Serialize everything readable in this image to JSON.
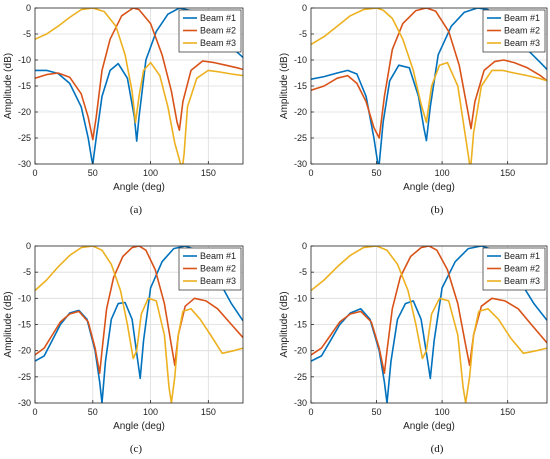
{
  "chart_data": [
    {
      "type": "line",
      "caption": "(a)",
      "xlabel": "Angle (deg)",
      "ylabel": "Amplitude (dB)",
      "xlim": [
        0,
        180
      ],
      "ylim": [
        -30,
        0
      ],
      "xticks": [
        0,
        50,
        100,
        150
      ],
      "yticks": [
        0,
        -5,
        -10,
        -15,
        -20,
        -25,
        -30
      ],
      "grid": true,
      "legend": "top-right",
      "series": [
        {
          "name": "Beam #1",
          "color": "#0072BD",
          "x": [
            0,
            10,
            20,
            30,
            40,
            46,
            49,
            50,
            53,
            58,
            65,
            72,
            80,
            86,
            88,
            90,
            96,
            105,
            115,
            125,
            135,
            143,
            150,
            160,
            170,
            180
          ],
          "y": [
            -12,
            -12,
            -12.6,
            -14.5,
            -19,
            -25,
            -29,
            -30,
            -25,
            -17,
            -12,
            -10.7,
            -13.5,
            -21,
            -25.6,
            -21,
            -10,
            -4.5,
            -1.2,
            0,
            -0.5,
            -1.8,
            -3.5,
            -5.5,
            -7.5,
            -9.5
          ]
        },
        {
          "name": "Beam #2",
          "color": "#D95319",
          "x": [
            0,
            10,
            20,
            30,
            40,
            46,
            50,
            53,
            58,
            65,
            75,
            85,
            90,
            100,
            110,
            118,
            123,
            125,
            128,
            135,
            145,
            155,
            165,
            175,
            180
          ],
          "y": [
            -13.5,
            -12.8,
            -12.5,
            -13.3,
            -16.5,
            -21,
            -25.3,
            -21,
            -12,
            -6,
            -1.5,
            0,
            -0.3,
            -3,
            -9,
            -16,
            -22,
            -23.5,
            -18,
            -12,
            -10.2,
            -10.5,
            -11,
            -11.5,
            -11.8
          ]
        },
        {
          "name": "Beam #3",
          "color": "#EDB120",
          "x": [
            0,
            10,
            20,
            30,
            40,
            50,
            60,
            70,
            78,
            84,
            87,
            90,
            94,
            100,
            108,
            115,
            121,
            126,
            128,
            129,
            132,
            140,
            150,
            160,
            170,
            180
          ],
          "y": [
            -6,
            -5,
            -3.5,
            -1.8,
            -0.3,
            0,
            -0.7,
            -3.5,
            -9,
            -16,
            -22,
            -17,
            -12,
            -10.5,
            -13,
            -19,
            -26,
            -30,
            -30,
            -28,
            -19,
            -13.5,
            -12,
            -12.3,
            -12.7,
            -13
          ]
        }
      ]
    },
    {
      "type": "line",
      "caption": "(b)",
      "xlabel": "Angle (deg)",
      "ylabel": "Amplitude (dB)",
      "xlim": [
        0,
        180
      ],
      "ylim": [
        -30,
        0
      ],
      "xticks": [
        0,
        50,
        100,
        150
      ],
      "yticks": [
        0,
        -5,
        -10,
        -15,
        -20,
        -25,
        -30
      ],
      "grid": true,
      "legend": "top-right",
      "series": [
        {
          "name": "Beam #1",
          "color": "#0072BD",
          "x": [
            0,
            10,
            20,
            28,
            35,
            42,
            48,
            51,
            52,
            55,
            60,
            67,
            75,
            82,
            86,
            88,
            91,
            97,
            107,
            117,
            127,
            135,
            145,
            155,
            165,
            175,
            180
          ],
          "y": [
            -13.7,
            -13.2,
            -12.5,
            -12,
            -12.7,
            -17,
            -25,
            -30,
            -30,
            -22,
            -14,
            -11,
            -11.5,
            -17,
            -23,
            -25.5,
            -19,
            -9,
            -3.5,
            -0.8,
            0,
            -0.3,
            -2.5,
            -5,
            -8,
            -10.5,
            -11.8
          ]
        },
        {
          "name": "Beam #2",
          "color": "#D95319",
          "x": [
            0,
            10,
            20,
            28,
            35,
            42,
            48,
            52,
            56,
            62,
            70,
            80,
            88,
            95,
            105,
            113,
            119,
            122,
            125,
            132,
            140,
            147,
            155,
            165,
            175,
            180
          ],
          "y": [
            -15.8,
            -15,
            -13.5,
            -13,
            -14.5,
            -18,
            -23,
            -25,
            -17,
            -8,
            -3,
            -0.5,
            0,
            -0.6,
            -4.5,
            -11,
            -19,
            -23.2,
            -18,
            -12,
            -10.3,
            -10,
            -10.5,
            -11.5,
            -13,
            -14
          ]
        },
        {
          "name": "Beam #3",
          "color": "#EDB120",
          "x": [
            0,
            10,
            20,
            30,
            40,
            50,
            55,
            62,
            70,
            78,
            84,
            88,
            92,
            98,
            104,
            112,
            118,
            121,
            122,
            124,
            130,
            138,
            146,
            155,
            165,
            175,
            180
          ],
          "y": [
            -7,
            -5.5,
            -3.5,
            -1.5,
            -0.3,
            0,
            -0.4,
            -2,
            -6,
            -12,
            -18.5,
            -22,
            -15,
            -11,
            -10.5,
            -15,
            -25,
            -30,
            -30,
            -24,
            -15,
            -12,
            -12,
            -12.5,
            -13,
            -13.6,
            -14
          ]
        }
      ]
    },
    {
      "type": "line",
      "caption": "(c)",
      "xlabel": "Angle (deg)",
      "ylabel": "Amplitude (dB)",
      "xlim": [
        0,
        180
      ],
      "ylim": [
        -30,
        0
      ],
      "xticks": [
        0,
        50,
        100,
        150
      ],
      "yticks": [
        0,
        -5,
        -10,
        -15,
        -20,
        -25,
        -30
      ],
      "grid": true,
      "legend": "top-right",
      "series": [
        {
          "name": "Beam #1",
          "color": "#0072BD",
          "x": [
            0,
            8,
            15,
            22,
            30,
            38,
            45,
            52,
            56,
            58,
            61,
            66,
            72,
            78,
            84,
            89,
            91,
            94,
            100,
            110,
            120,
            130,
            140,
            150,
            160,
            170,
            180
          ],
          "y": [
            -22,
            -21,
            -18,
            -15,
            -12.8,
            -12.3,
            -14,
            -20,
            -26,
            -30,
            -22,
            -14,
            -11,
            -10.8,
            -14,
            -22,
            -25.3,
            -18,
            -8,
            -3,
            -0.5,
            0,
            -0.8,
            -3.5,
            -7,
            -11,
            -14.3
          ]
        },
        {
          "name": "Beam #2",
          "color": "#D95319",
          "x": [
            0,
            8,
            15,
            22,
            30,
            38,
            46,
            52,
            56,
            58,
            62,
            68,
            76,
            84,
            90,
            96,
            104,
            112,
            118,
            121,
            124,
            130,
            138,
            148,
            158,
            168,
            180
          ],
          "y": [
            -20.8,
            -19.5,
            -17,
            -14.5,
            -13,
            -12.5,
            -14.5,
            -19.5,
            -24.3,
            -20,
            -12,
            -6,
            -2,
            -0.3,
            0,
            -0.8,
            -4.5,
            -11,
            -19,
            -22.8,
            -17,
            -11.5,
            -10,
            -10.5,
            -12,
            -14.5,
            -17.5
          ]
        },
        {
          "name": "Beam #3",
          "color": "#EDB120",
          "x": [
            0,
            10,
            20,
            30,
            40,
            50,
            58,
            66,
            74,
            80,
            85,
            88,
            92,
            98,
            105,
            112,
            116,
            118,
            121,
            124,
            128,
            135,
            143,
            152,
            162,
            172,
            180
          ],
          "y": [
            -8.5,
            -6.5,
            -4,
            -1.8,
            -0.3,
            0,
            -0.8,
            -3.5,
            -8.5,
            -15,
            -21.5,
            -20,
            -13,
            -10,
            -10.5,
            -17,
            -27,
            -30,
            -25,
            -17,
            -12.5,
            -12,
            -14,
            -17,
            -20.5,
            -20,
            -19.5
          ]
        }
      ]
    },
    {
      "type": "line",
      "caption": "(d)",
      "xlabel": "Angle (deg)",
      "ylabel": "Amplitude (dB)",
      "xlim": [
        0,
        180
      ],
      "ylim": [
        -30,
        0
      ],
      "xticks": [
        0,
        50,
        100,
        150
      ],
      "yticks": [
        0,
        -5,
        -10,
        -15,
        -20,
        -25,
        -30
      ],
      "grid": true,
      "legend": "top-right",
      "series": [
        {
          "name": "Beam #1",
          "color": "#0072BD",
          "x": [
            0,
            8,
            15,
            22,
            30,
            38,
            45,
            52,
            56,
            58,
            61,
            66,
            72,
            78,
            84,
            89,
            91,
            94,
            100,
            110,
            120,
            130,
            140,
            150,
            160,
            170,
            180
          ],
          "y": [
            -22,
            -21,
            -18,
            -15,
            -12.8,
            -12,
            -14,
            -20,
            -26,
            -30,
            -22,
            -14,
            -11,
            -10.5,
            -14,
            -22,
            -25.3,
            -18,
            -8,
            -3,
            -0.5,
            0,
            -0.8,
            -3.5,
            -7,
            -11,
            -14.2
          ]
        },
        {
          "name": "Beam #2",
          "color": "#D95319",
          "x": [
            0,
            8,
            15,
            22,
            30,
            38,
            46,
            52,
            56,
            58,
            62,
            68,
            76,
            84,
            90,
            96,
            104,
            112,
            118,
            121,
            124,
            130,
            138,
            148,
            158,
            168,
            180
          ],
          "y": [
            -20.8,
            -19.5,
            -17,
            -14.5,
            -13,
            -12.5,
            -14.5,
            -19.5,
            -24.3,
            -20,
            -12,
            -6,
            -2,
            -0.3,
            0,
            -0.8,
            -4.5,
            -11,
            -19,
            -22.8,
            -17,
            -11.5,
            -10,
            -10.5,
            -12,
            -15,
            -18.5
          ]
        },
        {
          "name": "Beam #3",
          "color": "#EDB120",
          "x": [
            0,
            10,
            20,
            30,
            40,
            50,
            58,
            66,
            74,
            80,
            85,
            88,
            92,
            98,
            105,
            112,
            116,
            118,
            121,
            124,
            128,
            135,
            143,
            152,
            162,
            172,
            180
          ],
          "y": [
            -8.5,
            -6.5,
            -4,
            -1.8,
            -0.3,
            0,
            -0.8,
            -3.5,
            -8.5,
            -15,
            -21.5,
            -20,
            -13,
            -10,
            -10.5,
            -17,
            -27,
            -30,
            -25,
            -17,
            -12.5,
            -12,
            -14,
            -17.5,
            -20.5,
            -20,
            -19.5
          ]
        }
      ]
    }
  ]
}
